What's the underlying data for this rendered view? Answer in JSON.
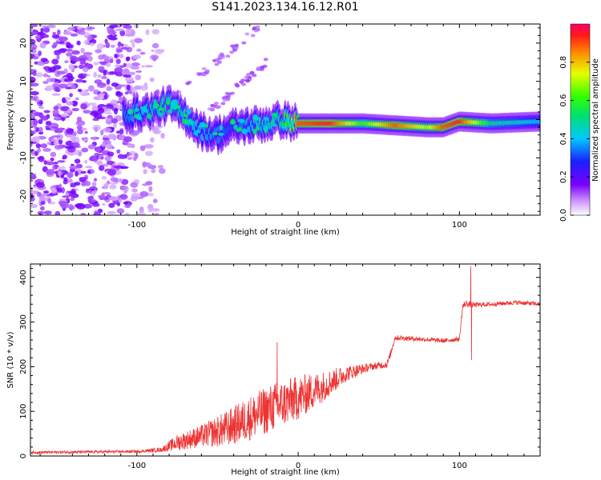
{
  "title": "S141.2023.134.16.12.R01",
  "chart_data": [
    {
      "type": "heatmap",
      "xlabel": "Height of straight line (km)",
      "ylabel": "Frequency (Hz)",
      "xlim": [
        -166,
        150
      ],
      "ylim": [
        -25,
        25
      ],
      "xticks": [
        -100,
        0,
        100
      ],
      "yticks": [
        20,
        10,
        0,
        -10,
        -20
      ],
      "colorbar": {
        "label": "Normalized spectral amplitude",
        "range": [
          0.0,
          1.0
        ],
        "ticks": [
          0.0,
          0.2,
          0.4,
          0.6,
          0.8
        ]
      },
      "ridge": {
        "description_points_x_km": [
          -105,
          -90,
          -80,
          -70,
          -60,
          -50,
          -40,
          -30,
          -20,
          -10,
          0,
          20,
          40,
          60,
          80,
          90,
          100,
          120,
          150
        ],
        "frequency_hz": [
          1.5,
          2.5,
          4,
          1,
          -3,
          -4,
          -2,
          -1.5,
          -1,
          0,
          -1,
          -1,
          -1,
          -1.5,
          -2,
          -2,
          -0.5,
          -1,
          -0.5
        ],
        "amplitude": [
          0.35,
          0.45,
          0.5,
          0.45,
          0.4,
          0.35,
          0.3,
          0.4,
          0.45,
          0.5,
          0.9,
          0.95,
          0.6,
          0.9,
          0.7,
          0.9,
          0.95,
          0.5,
          0.4
        ]
      }
    },
    {
      "type": "line",
      "xlabel": "Height of straight line (km)",
      "ylabel": "SNR (10 * v/v)",
      "xlim": [
        -166,
        150
      ],
      "ylim": [
        0,
        430
      ],
      "xticks": [
        -100,
        0,
        100
      ],
      "yticks": [
        0,
        100,
        200,
        300,
        400
      ],
      "color": "#ee3333",
      "envelope": {
        "x": [
          -166,
          -100,
          -85,
          -75,
          -60,
          -45,
          -30,
          -15,
          0,
          15,
          30,
          45,
          55,
          57,
          60,
          75,
          90,
          100,
          102,
          104,
          108,
          120,
          135,
          150
        ],
        "mean": [
          8,
          10,
          14,
          30,
          45,
          60,
          85,
          110,
          130,
          155,
          185,
          200,
          205,
          225,
          265,
          262,
          258,
          262,
          335,
          342,
          338,
          340,
          344,
          340
        ],
        "noise": [
          3,
          3,
          5,
          18,
          25,
          40,
          50,
          55,
          50,
          35,
          18,
          8,
          8,
          8,
          6,
          5,
          5,
          5,
          8,
          8,
          6,
          5,
          5,
          5
        ]
      },
      "spikes": [
        {
          "x": -13,
          "y": 255
        },
        {
          "x": 107,
          "y": 425
        },
        {
          "x": 107.5,
          "y": 215
        }
      ]
    }
  ]
}
